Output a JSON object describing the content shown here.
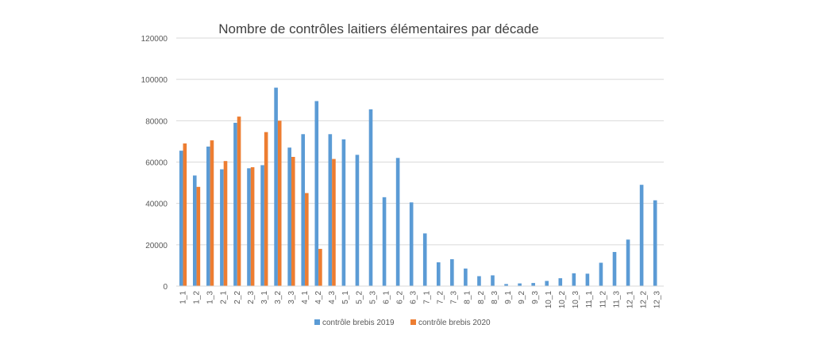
{
  "chart_data": {
    "type": "bar",
    "title": "Nombre de contrôles laitiers élémentaires par décade",
    "xlabel": "",
    "ylabel": "",
    "ylim": [
      0,
      120000
    ],
    "yticks": [
      0,
      20000,
      40000,
      60000,
      80000,
      100000,
      120000
    ],
    "grid": true,
    "legend_position": "bottom",
    "categories": [
      "1_1",
      "1_2",
      "1_3",
      "2_1",
      "2_2",
      "2_3",
      "3_1",
      "3_2",
      "3_3",
      "4_1",
      "4_2",
      "4_3",
      "5_1",
      "5_2",
      "5_3",
      "6_1",
      "6_2",
      "6_3",
      "7_1",
      "7_2",
      "7_3",
      "8_1",
      "8_2",
      "8_3",
      "9_1",
      "9_2",
      "9_3",
      "10_1",
      "10_2",
      "10_3",
      "11_1",
      "11_2",
      "11_3",
      "12_1",
      "12_2",
      "12_3"
    ],
    "series": [
      {
        "name": "contrôle brebis 2019",
        "color": "#5b9bd5",
        "values": [
          65500,
          53500,
          67500,
          56500,
          79000,
          57000,
          58500,
          96000,
          67000,
          73500,
          89500,
          73500,
          71000,
          63500,
          85500,
          43000,
          62000,
          40500,
          25500,
          11500,
          13000,
          8500,
          4800,
          5200,
          1000,
          1300,
          1500,
          2500,
          3800,
          6200,
          6000,
          11300,
          16500,
          22500,
          49000,
          41500
        ]
      },
      {
        "name": "contrôle brebis 2020",
        "color": "#ed7d31",
        "values": [
          69000,
          48000,
          70500,
          60500,
          82000,
          57500,
          74500,
          80000,
          62500,
          45000,
          18000,
          61500,
          null,
          null,
          null,
          null,
          null,
          null,
          null,
          null,
          null,
          null,
          null,
          null,
          null,
          null,
          null,
          null,
          null,
          null,
          null,
          null,
          null,
          null,
          null,
          null
        ]
      }
    ]
  }
}
